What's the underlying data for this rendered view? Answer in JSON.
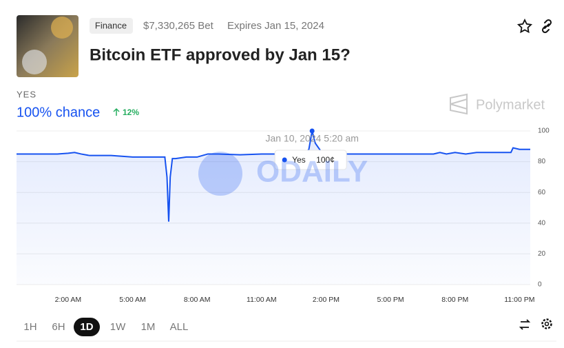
{
  "header": {
    "category": "Finance",
    "volume": "$7,330,265 Bet",
    "expires": "Expires Jan 15, 2024",
    "title": "Bitcoin ETF approved by Jan 15?"
  },
  "summary": {
    "outcome": "YES",
    "chance": "100% chance",
    "change": "12%",
    "brand": "Polymarket"
  },
  "watermark": "ODAILY",
  "chart_data": {
    "type": "line",
    "x": [
      -0.4,
      0,
      0.5,
      1,
      1.5,
      2,
      2.3,
      2.6,
      3,
      4,
      5,
      6,
      6.5,
      6.6,
      6.68,
      6.75,
      6.85,
      7,
      7.5,
      8,
      8.5,
      9,
      10,
      11,
      12,
      13,
      13.2,
      13.35,
      13.5,
      13.8,
      14,
      15,
      16,
      17,
      18,
      19,
      19.3,
      19.6,
      20,
      20.5,
      21,
      22,
      22.6,
      22.7,
      23,
      23.5
    ],
    "series": [
      {
        "name": "Yes",
        "color": "#1652f0",
        "values": [
          85,
          85,
          85,
          85,
          85,
          85.5,
          86,
          85,
          84,
          84,
          83,
          83,
          83,
          70,
          41,
          70,
          82,
          82,
          83,
          83,
          85,
          85,
          84.5,
          85,
          85,
          85,
          88,
          100,
          92,
          86,
          86,
          85,
          85,
          85,
          85,
          85,
          86,
          85,
          86,
          85,
          86,
          86,
          86,
          89,
          88,
          88
        ]
      }
    ],
    "xlim": [
      -0.4,
      23.5
    ],
    "xticks": [
      {
        "value": 2,
        "label": "2:00 AM"
      },
      {
        "value": 5,
        "label": "5:00 AM"
      },
      {
        "value": 8,
        "label": "8:00 AM"
      },
      {
        "value": 11,
        "label": "11:00 AM"
      },
      {
        "value": 14,
        "label": "2:00 PM"
      },
      {
        "value": 17,
        "label": "5:00 PM"
      },
      {
        "value": 20,
        "label": "8:00 PM"
      },
      {
        "value": 23,
        "label": "11:00 PM"
      }
    ],
    "ylim": [
      0,
      100
    ],
    "yticks": [
      0,
      20,
      40,
      60,
      80,
      100
    ],
    "grid": true,
    "tooltip": {
      "date": "Jan 10, 2024 5:20 am",
      "label": "100¢",
      "point": 27
    }
  },
  "ranges": [
    "1H",
    "6H",
    "1D",
    "1W",
    "1M",
    "ALL"
  ],
  "selected_range": 2
}
